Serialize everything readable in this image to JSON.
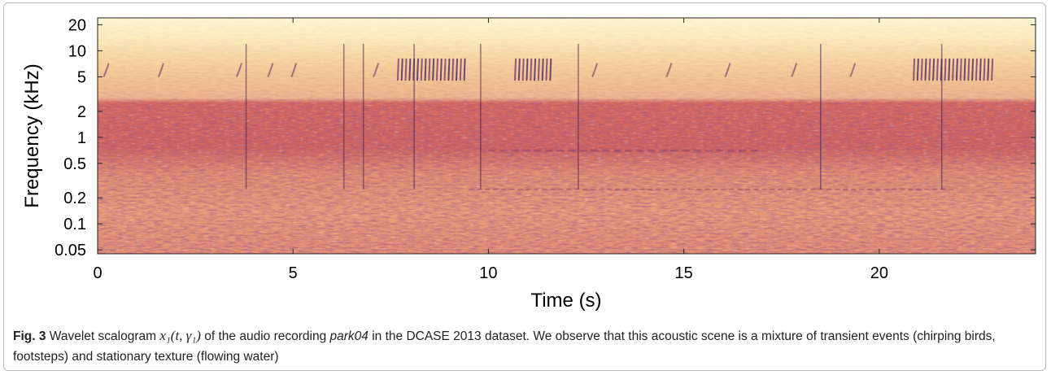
{
  "figure": {
    "label": "Fig. 3",
    "caption": {
      "text_before_math": " Wavelet scalogram ",
      "math": "x₁(t, γ₁)",
      "text_mid": " of the audio recording ",
      "recording_name": "park04",
      "text_after": " in the DCASE 2013 dataset. We observe that this acoustic scene is a mixture of transient events (chirping birds, footsteps) and stationary texture (flowing water)"
    }
  },
  "chart_data": {
    "type": "heatmap",
    "title": "",
    "xlabel": "Time (s)",
    "ylabel": "Frequency (kHz)",
    "xlim": [
      0,
      24
    ],
    "ylim": [
      0.045,
      24
    ],
    "y_scale": "log",
    "x_ticks": [
      0,
      5,
      10,
      15,
      20
    ],
    "x_tick_labels": [
      "0",
      "5",
      "10",
      "15",
      "20"
    ],
    "y_ticks": [
      0.05,
      0.1,
      0.2,
      0.5,
      1,
      2,
      5,
      10,
      20
    ],
    "y_tick_labels": [
      "0.05",
      "0.1",
      "0.2",
      "0.5",
      "1",
      "2",
      "5",
      "10",
      "20"
    ],
    "colormap": [
      "#fdf6c8",
      "#fbe1a6",
      "#f5b98a",
      "#e98a6b",
      "#cf5c5e",
      "#a8405f",
      "#6f2f6a",
      "#3a1f5c"
    ],
    "features": {
      "bird_chirp_clusters_s": [
        [
          7.7,
          9.4
        ],
        [
          10.7,
          11.6
        ],
        [
          20.9,
          22.9
        ]
      ],
      "isolated_chirps_s": [
        0.2,
        1.6,
        3.6,
        4.4,
        5.0,
        7.1,
        12.7,
        14.6,
        16.1,
        17.8,
        19.3
      ],
      "transient_events_s": [
        3.8,
        6.3,
        6.8,
        8.1,
        9.8,
        12.3,
        18.5,
        21.6
      ]
    }
  }
}
